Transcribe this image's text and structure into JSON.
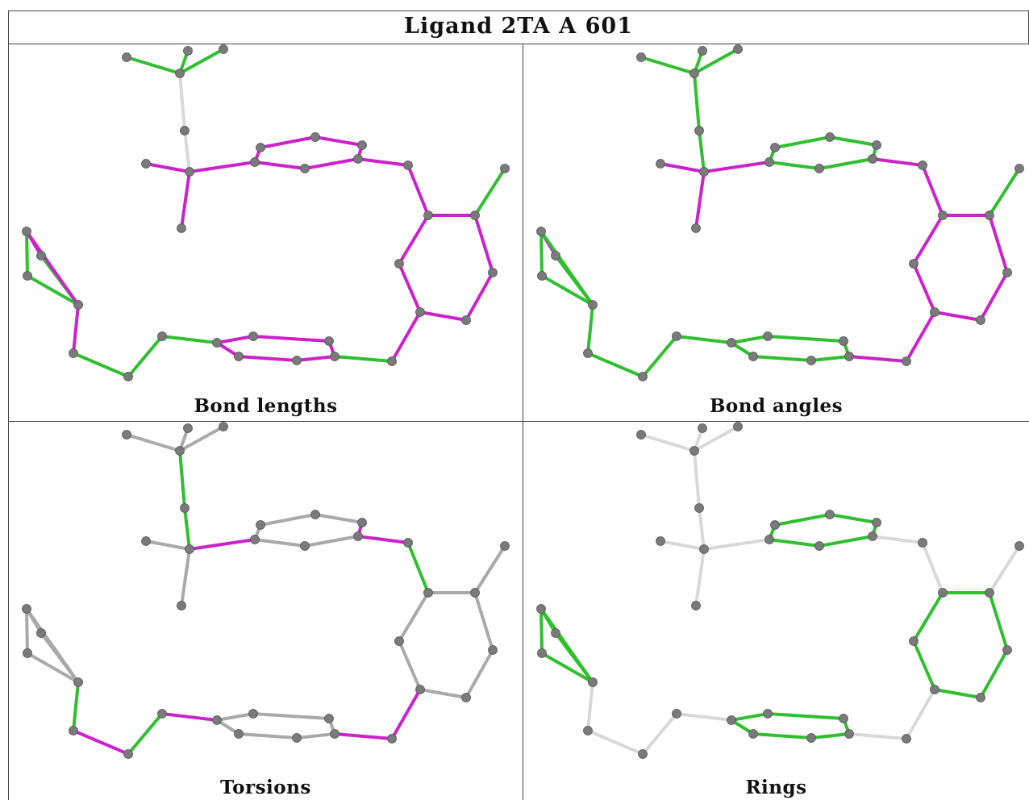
{
  "title": "Ligand 2TA A 601",
  "panels": [
    {
      "key": "lengths",
      "caption": "Bond lengths"
    },
    {
      "key": "angles",
      "caption": "Bond angles"
    },
    {
      "key": "torsions",
      "caption": "Torsions"
    },
    {
      "key": "rings",
      "caption": "Rings"
    }
  ],
  "colors": {
    "atom": "#7a7a7a",
    "green": "#2fbf2f",
    "magenta": "#cc22cc",
    "grey": "#a9a9a9",
    "light": "#d8d8d8"
  }
}
